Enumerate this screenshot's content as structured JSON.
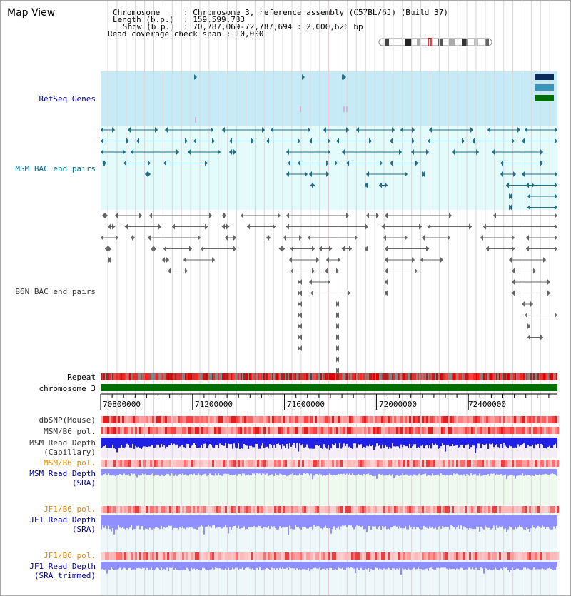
{
  "title": "Map View",
  "header": {
    "chromosome_key": "Chromosome",
    "chromosome_val": ": Chromosome 3, reference assembly (C57BL/6J) (Build 37)",
    "length_key": "Length (b.p.)",
    "length_val": ": 159,599,783",
    "show_key": "Show (b.p.)",
    "show_val": ": 70,787,069-72,787,694 : 2,000,626 bp",
    "coverage": "Read coverage check span : 10,000"
  },
  "tracks": {
    "refseq": "RefSeq Genes",
    "msm_bac": "MSM BAC end pairs",
    "b6n_bac": "B6N BAC end pairs",
    "repeat": "Repeat",
    "chromosome": "chromosome 3",
    "dbsnp": "dbSNP(Mouse)",
    "msm_b6_pol": "MSM/B6 pol.",
    "msm_depth_cap_1": "MSM Read Depth",
    "msm_depth_cap_2": "(Capillary)",
    "msm_b6_pol_2": "MSM/B6 pol.",
    "msm_depth_sra_1": "MSM Read Depth",
    "msm_depth_sra_2": "(SRA)",
    "jf1_b6_pol": "JF1/B6 pol.",
    "jf1_depth_sra_1": "JF1 Read Depth",
    "jf1_depth_sra_2": "(SRA)",
    "jf1_b6_pol_2": "JF1/B6 pol.",
    "jf1_depth_trim_1": "JF1 Read Depth",
    "jf1_depth_trim_2": "(SRA trimmed)"
  },
  "ruler": {
    "ticks": [
      "70800000",
      "71200000",
      "71600000",
      "72000000",
      "72400000"
    ]
  },
  "colors": {
    "refseq_bg": "#c6eaf6",
    "bac_bg": "#e4fbfb",
    "msm_feature": "#1f6f8b",
    "b6n_feature": "#666666",
    "chromosome": "#006f00",
    "label_navy": "#000099",
    "label_orange": "#e68a00",
    "label_teal": "#006f8a",
    "depth_dark": "#1f1fe6",
    "depth_light": "#8f8fff"
  }
}
